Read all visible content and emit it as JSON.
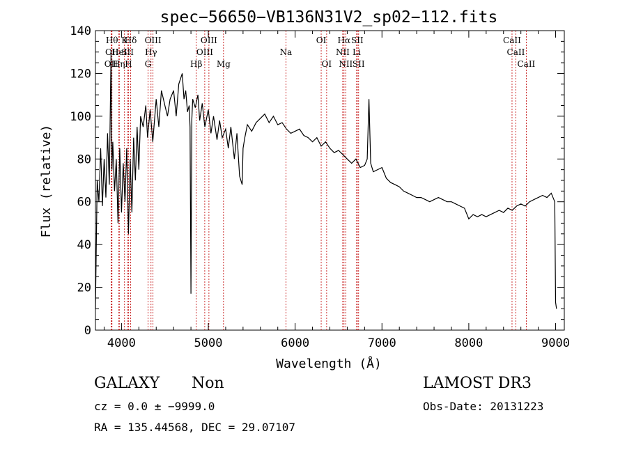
{
  "chart_data": {
    "type": "line",
    "title": "spec−56650−VB136N31V2_sp02−112.fits",
    "xlabel": "Wavelength (Å)",
    "ylabel": "Flux (relative)",
    "xlim": [
      3700,
      9100
    ],
    "ylim": [
      0,
      140
    ],
    "xticks": [
      4000,
      5000,
      6000,
      7000,
      8000,
      9000
    ],
    "yticks": [
      0,
      20,
      40,
      60,
      80,
      100,
      120,
      140
    ],
    "series": [
      {
        "name": "spectrum",
        "x": [
          3700,
          3720,
          3740,
          3760,
          3780,
          3800,
          3820,
          3840,
          3860,
          3880,
          3890,
          3900,
          3920,
          3940,
          3960,
          3980,
          4000,
          4020,
          4040,
          4060,
          4080,
          4100,
          4120,
          4140,
          4160,
          4180,
          4200,
          4220,
          4250,
          4280,
          4300,
          4330,
          4360,
          4400,
          4430,
          4460,
          4500,
          4530,
          4560,
          4600,
          4630,
          4660,
          4700,
          4720,
          4740,
          4760,
          4780,
          4790,
          4800,
          4810,
          4820,
          4850,
          4880,
          4900,
          4930,
          4960,
          5000,
          5030,
          5060,
          5100,
          5130,
          5160,
          5200,
          5230,
          5260,
          5300,
          5330,
          5360,
          5390,
          5400,
          5420,
          5450,
          5500,
          5550,
          5600,
          5650,
          5700,
          5750,
          5800,
          5850,
          5900,
          5950,
          6000,
          6050,
          6100,
          6150,
          6200,
          6250,
          6300,
          6350,
          6400,
          6450,
          6500,
          6550,
          6600,
          6650,
          6700,
          6750,
          6800,
          6830,
          6850,
          6870,
          6900,
          6950,
          7000,
          7050,
          7100,
          7150,
          7200,
          7250,
          7300,
          7350,
          7400,
          7450,
          7500,
          7550,
          7600,
          7650,
          7700,
          7750,
          7800,
          7850,
          7900,
          7950,
          8000,
          8050,
          8100,
          8150,
          8200,
          8250,
          8300,
          8350,
          8400,
          8450,
          8500,
          8550,
          8600,
          8650,
          8700,
          8750,
          8800,
          8850,
          8900,
          8950,
          8990,
          9000,
          9010
        ],
        "values": [
          10,
          70,
          60,
          85,
          58,
          80,
          62,
          92,
          68,
          130,
          75,
          88,
          65,
          80,
          50,
          85,
          55,
          78,
          60,
          85,
          45,
          80,
          55,
          90,
          70,
          95,
          75,
          100,
          95,
          105,
          90,
          103,
          88,
          108,
          95,
          112,
          105,
          100,
          108,
          112,
          100,
          115,
          120,
          108,
          112,
          102,
          105,
          95,
          17,
          98,
          108,
          104,
          110,
          98,
          106,
          95,
          103,
          92,
          100,
          89,
          98,
          90,
          94,
          85,
          95,
          80,
          92,
          72,
          68,
          85,
          90,
          96,
          93,
          97,
          99,
          101,
          97,
          100,
          96,
          97,
          94,
          92,
          93,
          94,
          91,
          90,
          88,
          90,
          86,
          88,
          85,
          83,
          84,
          82,
          80,
          78,
          80,
          76,
          77,
          80,
          108,
          78,
          74,
          75,
          76,
          71,
          69,
          68,
          67,
          65,
          64,
          63,
          62,
          62,
          61,
          60,
          61,
          62,
          61,
          60,
          60,
          59,
          58,
          57,
          52,
          54,
          53,
          54,
          53,
          54,
          55,
          56,
          55,
          57,
          56,
          58,
          59,
          58,
          60,
          61,
          62,
          63,
          62,
          64,
          60,
          13,
          10
        ]
      }
    ],
    "lines": [
      {
        "x": 3880,
        "label": "OII",
        "row": 2
      },
      {
        "x": 3890,
        "label": "OII",
        "row": 1
      },
      {
        "x": 3890,
        "label": "Hθ",
        "row": 0
      },
      {
        "x": 3970,
        "label": "Hη",
        "row": 2
      },
      {
        "x": 3975,
        "label": "HeI",
        "row": 1
      },
      {
        "x": 4035,
        "label": "K",
        "row": 0
      },
      {
        "x": 4070,
        "label": "SII",
        "row": 1
      },
      {
        "x": 4080,
        "label": "H",
        "row": 2
      },
      {
        "x": 4105,
        "label": "Hδ",
        "row": 0
      },
      {
        "x": 4305,
        "label": "G",
        "row": 2
      },
      {
        "x": 4340,
        "label": "Hγ",
        "row": 1
      },
      {
        "x": 4363,
        "label": "OIII",
        "row": 0
      },
      {
        "x": 4861,
        "label": "Hβ",
        "row": 2
      },
      {
        "x": 4959,
        "label": "OIII",
        "row": 1
      },
      {
        "x": 5007,
        "label": "OIII",
        "row": 0
      },
      {
        "x": 5175,
        "label": "Mg",
        "row": 2
      },
      {
        "x": 5894,
        "label": "Na",
        "row": 1
      },
      {
        "x": 6300,
        "label": "OI",
        "row": 0
      },
      {
        "x": 6363,
        "label": "OI",
        "row": 2
      },
      {
        "x": 6548,
        "label": "NII",
        "row": 1
      },
      {
        "x": 6563,
        "label": "Hα",
        "row": 0
      },
      {
        "x": 6583,
        "label": "NII",
        "row": 2
      },
      {
        "x": 6716,
        "label": "SII",
        "row": 0
      },
      {
        "x": 6731,
        "label": "SII",
        "row": 2
      },
      {
        "x": 6708,
        "label": "Li",
        "row": 1
      },
      {
        "x": 8498,
        "label": "CaII",
        "row": 0
      },
      {
        "x": 8542,
        "label": "CaII",
        "row": 1
      },
      {
        "x": 8662,
        "label": "CaII",
        "row": 2
      }
    ]
  },
  "info": {
    "class": "GALAXY",
    "subclass": "Non",
    "survey": "LAMOST DR3",
    "cz": "cz = 0.0 ± −9999.0",
    "obsdate": "Obs-Date: 20131223",
    "coords": "RA = 135.44568, DEC =  29.07107"
  }
}
